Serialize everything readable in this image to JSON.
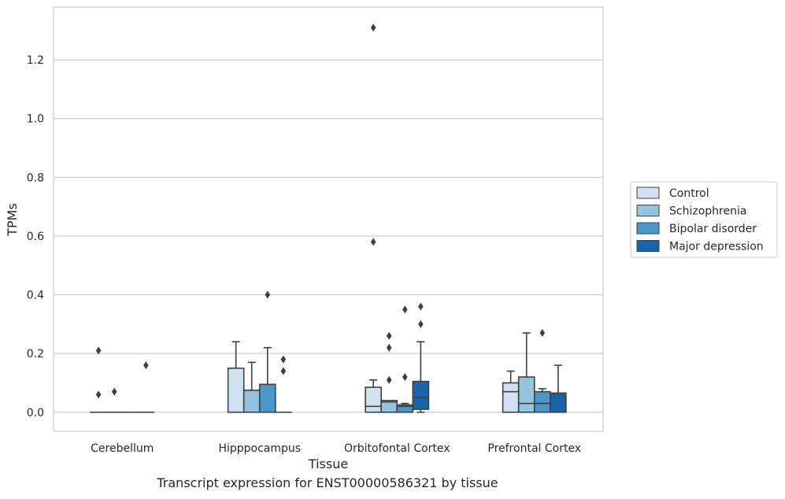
{
  "chart_data": {
    "type": "box",
    "xlabel": "Tissue",
    "ylabel": "TPMs",
    "caption": "Transcript expression for ENST00000586321 by tissue",
    "ylim": [
      -0.065,
      1.38
    ],
    "yticks": [
      "0.0",
      "0.2",
      "0.4",
      "0.6",
      "0.8",
      "1.0",
      "1.2"
    ],
    "categories": [
      "Cerebellum",
      "Hipppocampus",
      "Orbitofontal Cortex",
      "Prefrontal Cortex"
    ],
    "grid": "horizontal",
    "legend_position": "right",
    "series": [
      {
        "name": "Control",
        "color": "#d0e1f2",
        "boxes": [
          {
            "q1": 0,
            "median": 0,
            "q3": 0,
            "whislo": 0,
            "whishi": 0,
            "fliers": [
              0.21,
              0.06
            ]
          },
          {
            "q1": 0,
            "median": 0,
            "q3": 0.15,
            "whislo": 0,
            "whishi": 0.24,
            "fliers": []
          },
          {
            "q1": 0,
            "median": 0.02,
            "q3": 0.085,
            "whislo": 0,
            "whishi": 0.11,
            "fliers": [
              1.31,
              0.58
            ]
          },
          {
            "q1": 0,
            "median": 0.07,
            "q3": 0.1,
            "whislo": 0,
            "whishi": 0.14,
            "fliers": []
          }
        ]
      },
      {
        "name": "Schizophrenia",
        "color": "#94c4df",
        "boxes": [
          {
            "q1": 0,
            "median": 0,
            "q3": 0,
            "whislo": 0,
            "whishi": 0,
            "fliers": [
              0.07
            ]
          },
          {
            "q1": 0,
            "median": 0,
            "q3": 0.075,
            "whislo": 0,
            "whishi": 0.17,
            "fliers": []
          },
          {
            "q1": 0,
            "median": 0.035,
            "q3": 0.04,
            "whislo": 0,
            "whishi": 0.04,
            "fliers": [
              0.26,
              0.22,
              0.11
            ]
          },
          {
            "q1": 0,
            "median": 0.03,
            "q3": 0.12,
            "whislo": 0,
            "whishi": 0.27,
            "fliers": []
          }
        ]
      },
      {
        "name": "Bipolar disorder",
        "color": "#4a98c9",
        "boxes": [
          {
            "q1": 0,
            "median": 0,
            "q3": 0,
            "whislo": 0,
            "whishi": 0,
            "fliers": []
          },
          {
            "q1": 0,
            "median": 0,
            "q3": 0.095,
            "whislo": 0,
            "whishi": 0.22,
            "fliers": [
              0.4
            ]
          },
          {
            "q1": 0,
            "median": 0.02,
            "q3": 0.025,
            "whislo": 0,
            "whishi": 0.03,
            "fliers": [
              0.35,
              0.12
            ]
          },
          {
            "q1": 0,
            "median": 0.03,
            "q3": 0.07,
            "whislo": 0,
            "whishi": 0.08,
            "fliers": [
              0.27
            ]
          }
        ]
      },
      {
        "name": "Major depression",
        "color": "#1764ab",
        "boxes": [
          {
            "q1": 0,
            "median": 0,
            "q3": 0,
            "whislo": 0,
            "whishi": 0,
            "fliers": [
              0.16
            ]
          },
          {
            "q1": 0,
            "median": 0,
            "q3": 0,
            "whislo": 0,
            "whishi": 0,
            "fliers": [
              0.18,
              0.14
            ]
          },
          {
            "q1": 0.01,
            "median": 0.05,
            "q3": 0.105,
            "whislo": 0,
            "whishi": 0.24,
            "fliers": [
              0.36,
              0.3
            ]
          },
          {
            "q1": 0,
            "median": 0.065,
            "q3": 0.065,
            "whislo": 0,
            "whishi": 0.16,
            "fliers": []
          }
        ]
      }
    ]
  }
}
